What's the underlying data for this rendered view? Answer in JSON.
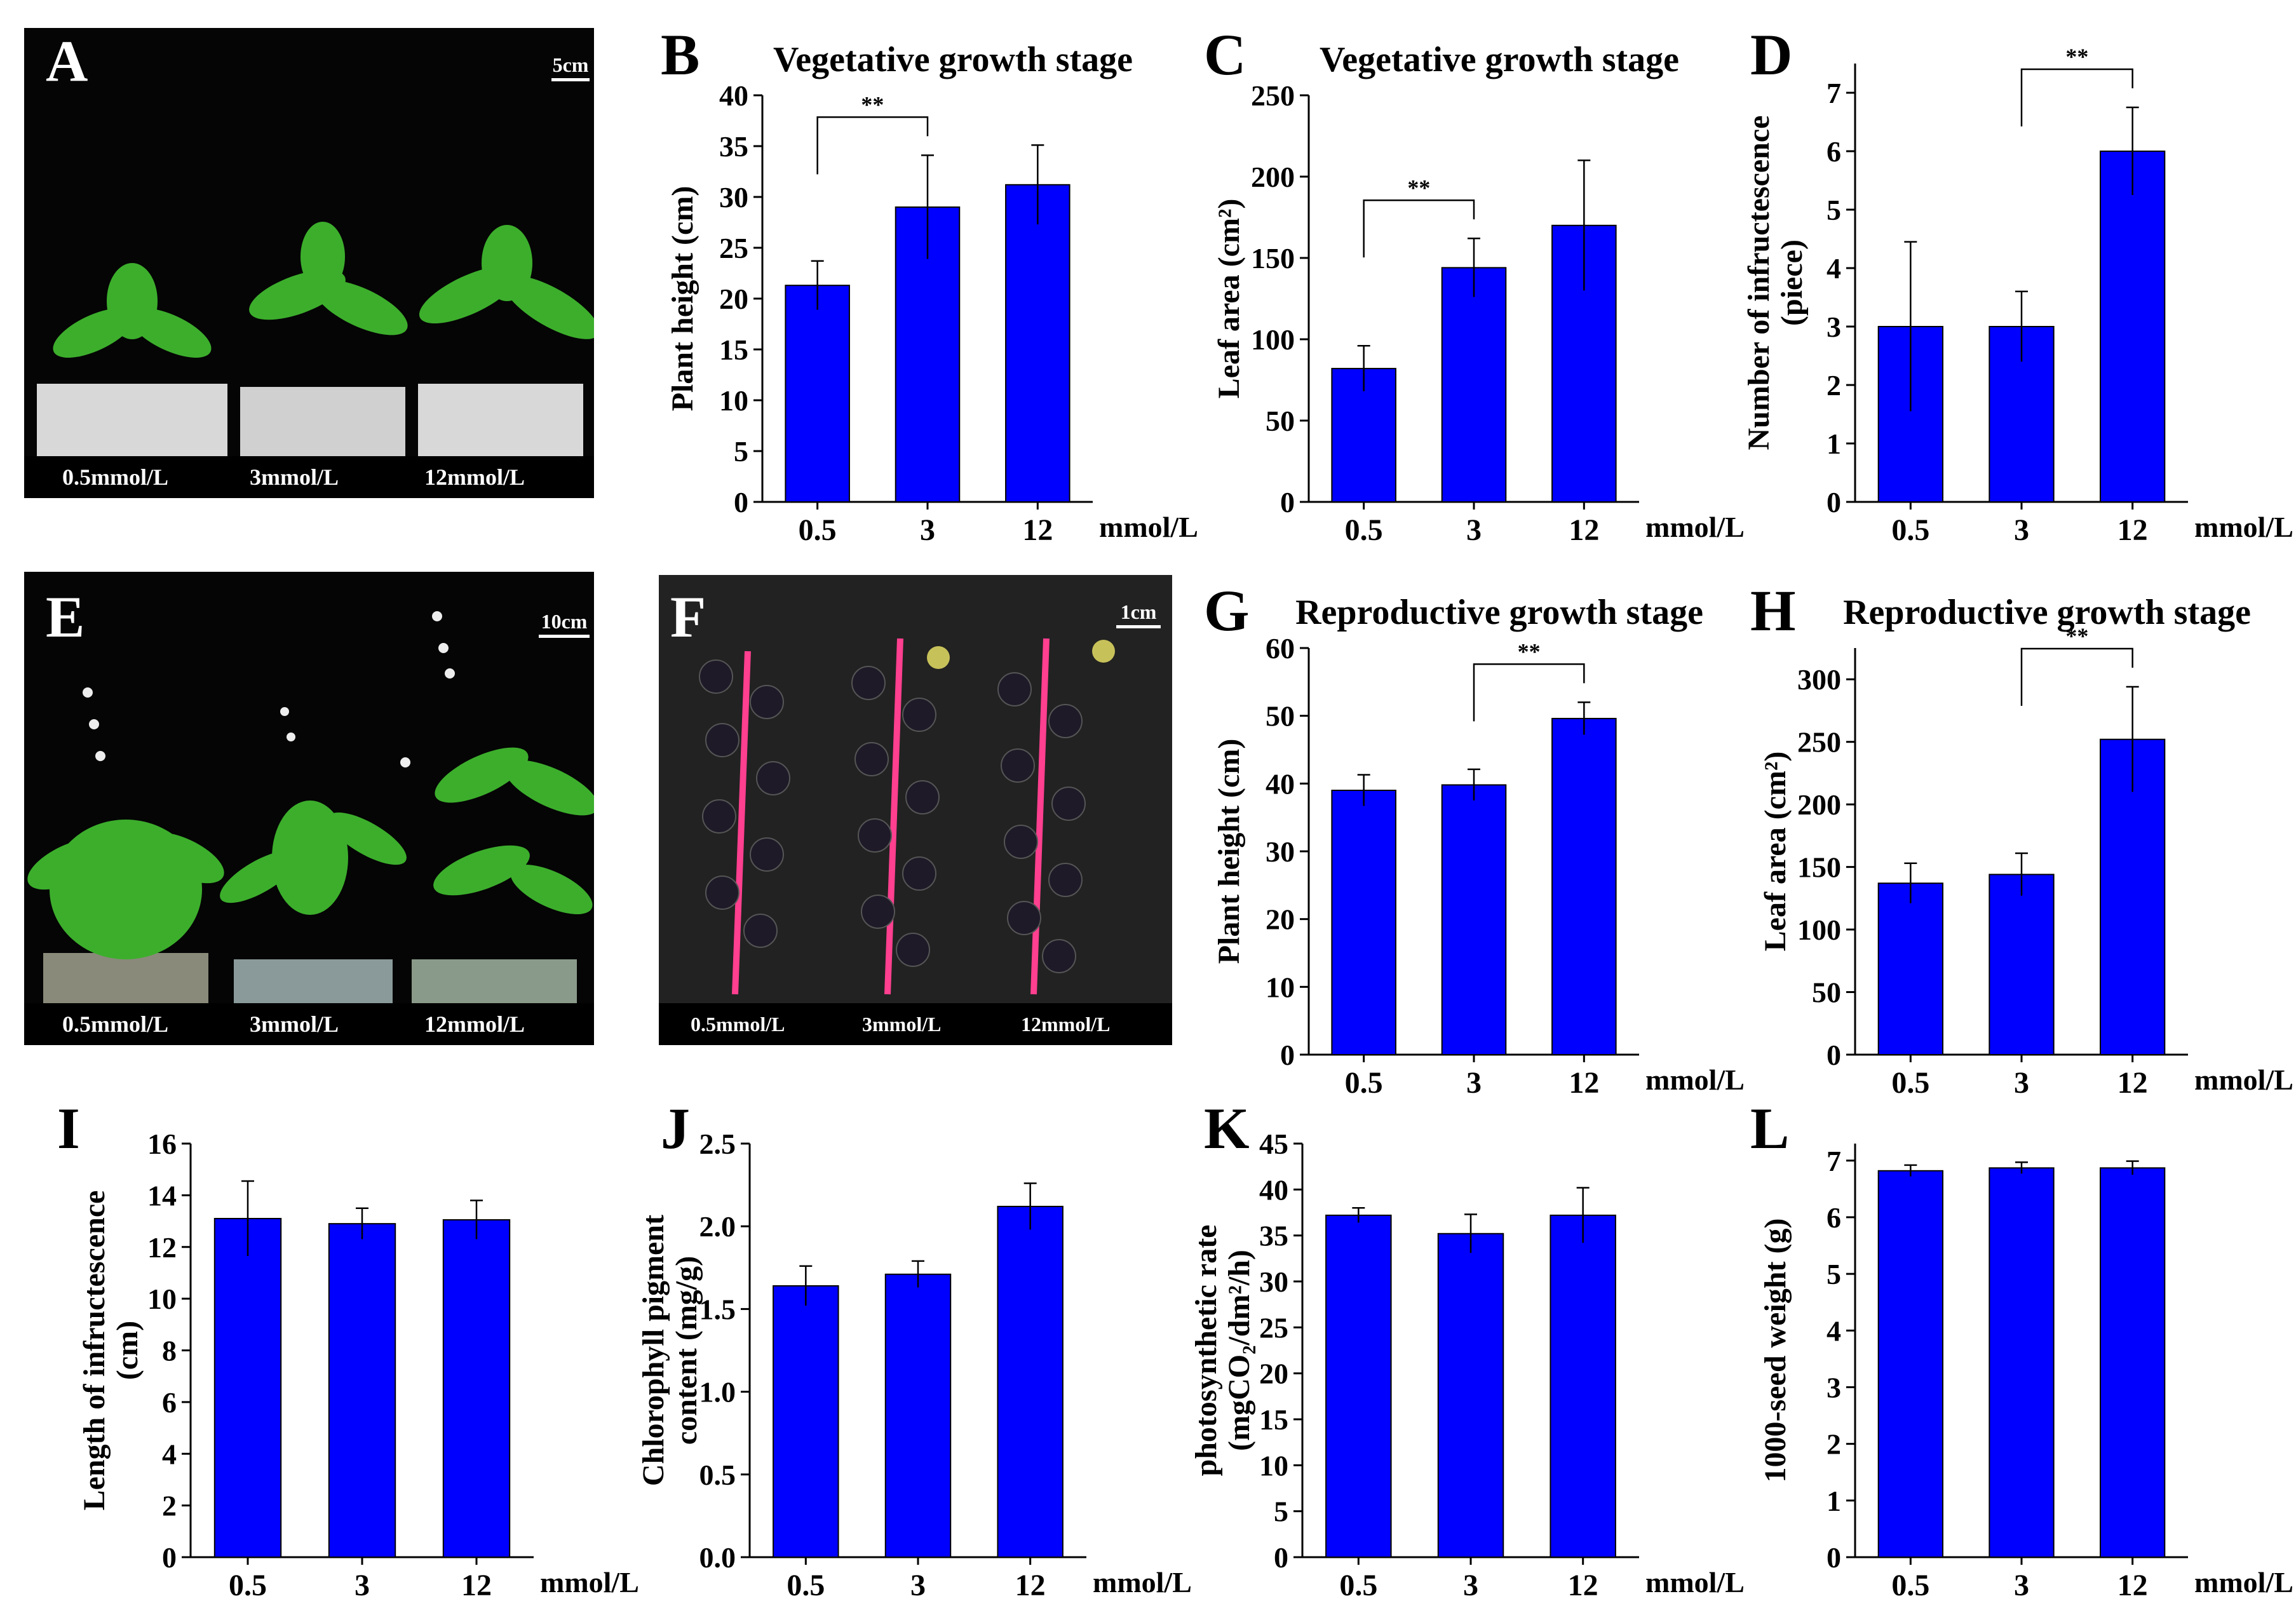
{
  "figure": {
    "panel_letters": [
      "A",
      "B",
      "C",
      "D",
      "E",
      "F",
      "G",
      "H",
      "I",
      "J",
      "K",
      "L"
    ]
  },
  "photos": {
    "A": {
      "captions": [
        "0.5mmol/L",
        "3mmol/L",
        "12mmol/L"
      ],
      "scale": "5cm"
    },
    "E": {
      "captions": [
        "0.5mmol/L",
        "3mmol/L",
        "12mmol/L"
      ],
      "scale": "10cm"
    },
    "F": {
      "captions": [
        "0.5mmol/L",
        "3mmol/L",
        "12mmol/L"
      ],
      "scale": "1cm"
    }
  },
  "colors": {
    "bar": "#0000ff",
    "axis": "#000000",
    "photo_bg": "#050505",
    "leaf": "#3cae2c",
    "stem": "#ff3f8f"
  },
  "chart_data": [
    {
      "panel": "B",
      "type": "bar",
      "title": "Vegetative growth stage",
      "ylabel_lines": [
        "Plant height (cm)"
      ],
      "unit": "mmol/L",
      "categories": [
        "0.5",
        "3",
        "12"
      ],
      "values": [
        21.3,
        29.0,
        31.2
      ],
      "errors": [
        2.4,
        5.1,
        3.9
      ],
      "ylim": [
        0,
        40
      ],
      "yticks": [
        "0",
        "5",
        "10",
        "15",
        "20",
        "25",
        "30",
        "35",
        "40"
      ],
      "significance": {
        "from": 0,
        "to": 1,
        "label": "**"
      }
    },
    {
      "panel": "C",
      "type": "bar",
      "title": "Vegetative growth stage",
      "ylabel_lines": [
        "Leaf area (cm²)"
      ],
      "unit": "mmol/L",
      "categories": [
        "0.5",
        "3",
        "12"
      ],
      "values": [
        82,
        144,
        170
      ],
      "errors": [
        14,
        18,
        40
      ],
      "ylim": [
        0,
        250
      ],
      "yticks": [
        "0",
        "50",
        "100",
        "150",
        "200",
        "250"
      ],
      "significance": {
        "from": 0,
        "to": 1,
        "label": "**"
      }
    },
    {
      "panel": "D",
      "type": "bar",
      "title": "",
      "ylabel_lines": [
        "Number of infructescence",
        "(piece)"
      ],
      "unit": "mmol/L",
      "categories": [
        "0.5",
        "3",
        "12"
      ],
      "values": [
        3.0,
        3.0,
        6.0
      ],
      "errors": [
        1.45,
        0.6,
        0.75
      ],
      "ylim": [
        0,
        7.5
      ],
      "yticks": [
        "0",
        "1",
        "2",
        "3",
        "4",
        "5",
        "6",
        "7"
      ],
      "significance": {
        "from": 1,
        "to": 2,
        "label": "**"
      }
    },
    {
      "panel": "G",
      "type": "bar",
      "title": "Reproductive growth stage",
      "ylabel_lines": [
        "Plant height (cm)"
      ],
      "unit": "mmol/L",
      "categories": [
        "0.5",
        "3",
        "12"
      ],
      "values": [
        39.0,
        39.8,
        49.6
      ],
      "errors": [
        2.3,
        2.3,
        2.4
      ],
      "ylim": [
        0,
        60
      ],
      "yticks": [
        "0",
        "10",
        "20",
        "30",
        "40",
        "50",
        "60"
      ],
      "significance": {
        "from": 1,
        "to": 2,
        "label": "**"
      }
    },
    {
      "panel": "H",
      "type": "bar",
      "title": "Reproductive growth stage",
      "ylabel_lines": [
        "Leaf area (cm²)"
      ],
      "unit": "mmol/L",
      "categories": [
        "0.5",
        "3",
        "12"
      ],
      "values": [
        137,
        144,
        252
      ],
      "errors": [
        16,
        17,
        42
      ],
      "ylim": [
        0,
        325
      ],
      "yticks": [
        "0",
        "50",
        "100",
        "150",
        "200",
        "250",
        "300"
      ],
      "significance": {
        "from": 1,
        "to": 2,
        "label": "**"
      }
    },
    {
      "panel": "I",
      "type": "bar",
      "title": "",
      "ylabel_lines": [
        "Length of infructescence",
        "(cm)"
      ],
      "unit": "mmol/L",
      "categories": [
        "0.5",
        "3",
        "12"
      ],
      "values": [
        13.1,
        12.9,
        13.05
      ],
      "errors": [
        1.45,
        0.6,
        0.75
      ],
      "ylim": [
        0,
        16
      ],
      "yticks": [
        "0",
        "2",
        "4",
        "6",
        "8",
        "10",
        "12",
        "14",
        "16"
      ],
      "significance": null
    },
    {
      "panel": "J",
      "type": "bar",
      "title": "",
      "ylabel_lines": [
        "Chlorophyll pigment",
        "content (mg/g)"
      ],
      "unit": "mmol/L",
      "categories": [
        "0.5",
        "3",
        "12"
      ],
      "values": [
        1.64,
        1.71,
        2.12
      ],
      "errors": [
        0.12,
        0.08,
        0.14
      ],
      "ylim": [
        0,
        2.5
      ],
      "yticks": [
        "0.0",
        "0.5",
        "1.0",
        "1.5",
        "2.0",
        "2.5"
      ],
      "significance": null
    },
    {
      "panel": "K",
      "type": "bar",
      "title": "",
      "ylabel_lines": [
        "photosynthetic rate",
        "(mgCO₂/dm²/h)"
      ],
      "unit": "mmol/L",
      "categories": [
        "0.5",
        "3",
        "12"
      ],
      "values": [
        37.2,
        35.2,
        37.2
      ],
      "errors": [
        0.8,
        2.1,
        3.0
      ],
      "ylim": [
        0,
        45
      ],
      "yticks": [
        "0",
        "5",
        "10",
        "15",
        "20",
        "25",
        "30",
        "35",
        "40",
        "45"
      ],
      "significance": null
    },
    {
      "panel": "L",
      "type": "bar",
      "title": "",
      "ylabel_lines": [
        "1000-seed weight (g)"
      ],
      "unit": "mmol/L",
      "categories": [
        "0.5",
        "3",
        "12"
      ],
      "values": [
        6.82,
        6.87,
        6.87
      ],
      "errors": [
        0.1,
        0.1,
        0.12
      ],
      "ylim": [
        0,
        7.3
      ],
      "yticks": [
        "0",
        "1",
        "2",
        "3",
        "4",
        "5",
        "6",
        "7"
      ],
      "significance": null
    }
  ]
}
